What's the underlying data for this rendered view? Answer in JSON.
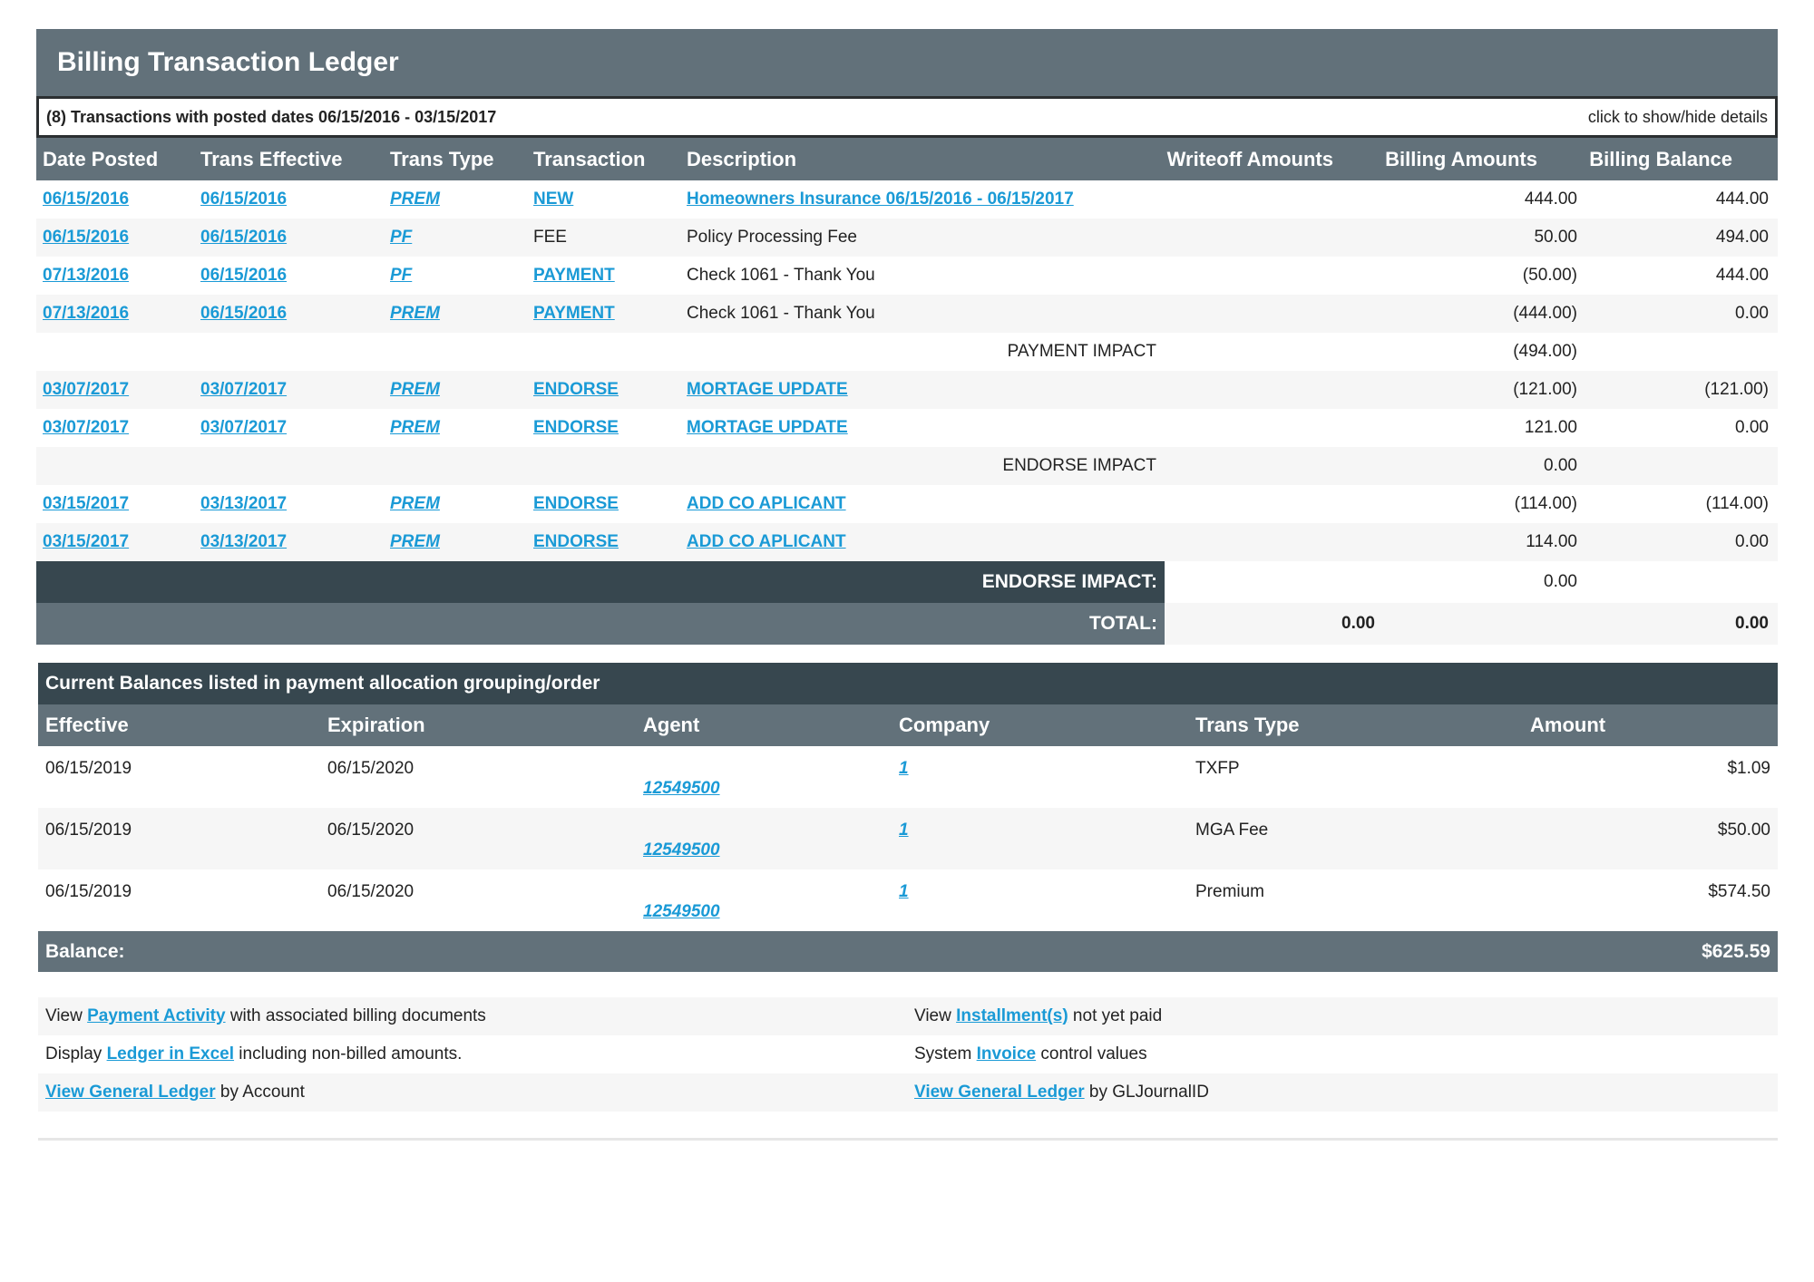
{
  "title": "Billing Transaction Ledger",
  "subtitle": "(8) Transactions with posted dates 06/15/2016 - 03/15/2017",
  "toggle_details": "click to show/hide details",
  "colors": {
    "header": "#62717a",
    "dark": "#37474f",
    "link": "#1a9ad6"
  },
  "columns": [
    "Date Posted",
    "Trans Effective",
    "Trans Type",
    "Transaction",
    "Description",
    "Writeoff Amounts",
    "Billing Amounts",
    "Billing Balance"
  ],
  "rows": [
    {
      "posted": "06/15/2016",
      "effective": "06/15/2016",
      "type": "PREM",
      "transaction": "NEW",
      "transaction_link": true,
      "description": "Homeowners Insurance 06/15/2016 - 06/15/2017",
      "description_link": true,
      "billing": "444.00",
      "balance": "444.00"
    },
    {
      "posted": "06/15/2016",
      "effective": "06/15/2016",
      "type": "PF",
      "transaction": "FEE",
      "transaction_link": false,
      "description": "Policy Processing Fee",
      "description_link": false,
      "billing": "50.00",
      "balance": "494.00"
    },
    {
      "posted": "07/13/2016",
      "effective": "06/15/2016",
      "type": "PF",
      "transaction": "PAYMENT",
      "transaction_link": true,
      "description": "Check 1061 - Thank You",
      "description_link": false,
      "billing": "(50.00)",
      "balance": "444.00"
    },
    {
      "posted": "07/13/2016",
      "effective": "06/15/2016",
      "type": "PREM",
      "transaction": "PAYMENT",
      "transaction_link": true,
      "description": "Check 1061 - Thank You",
      "description_link": false,
      "billing": "(444.00)",
      "balance": "0.00"
    },
    {
      "impact": "PAYMENT IMPACT",
      "billing": "(494.00)"
    },
    {
      "posted": "03/07/2017",
      "effective": "03/07/2017",
      "type": "PREM",
      "transaction": "ENDORSE",
      "transaction_link": true,
      "description": "MORTAGE UPDATE",
      "description_link": true,
      "billing": "(121.00)",
      "balance": "(121.00)"
    },
    {
      "posted": "03/07/2017",
      "effective": "03/07/2017",
      "type": "PREM",
      "transaction": "ENDORSE",
      "transaction_link": true,
      "description": "MORTAGE UPDATE",
      "description_link": true,
      "billing": "121.00",
      "balance": "0.00"
    },
    {
      "impact": "ENDORSE IMPACT",
      "billing": "0.00"
    },
    {
      "posted": "03/15/2017",
      "effective": "03/13/2017",
      "type": "PREM",
      "transaction": "ENDORSE",
      "transaction_link": true,
      "description": "ADD CO APLICANT",
      "description_link": true,
      "billing": "(114.00)",
      "balance": "(114.00)"
    },
    {
      "posted": "03/15/2017",
      "effective": "03/13/2017",
      "type": "PREM",
      "transaction": "ENDORSE",
      "transaction_link": true,
      "description": "ADD CO APLICANT",
      "description_link": true,
      "billing": "114.00",
      "balance": "0.00"
    }
  ],
  "summary": {
    "endorse_label": "ENDORSE IMPACT:",
    "endorse_value": "0.00",
    "total_label": "TOTAL:",
    "total_writeoff": "0.00",
    "total_balance": "0.00"
  },
  "balances": {
    "title": "Current Balances listed in payment allocation grouping/order",
    "columns": [
      "Effective",
      "Expiration",
      "Agent",
      "Company",
      "Trans Type",
      "Amount"
    ],
    "rows": [
      {
        "effective": "06/15/2019",
        "expiration": "06/15/2020",
        "agent": "12549500",
        "company": "1",
        "type": "TXFP",
        "amount": "$1.09"
      },
      {
        "effective": "06/15/2019",
        "expiration": "06/15/2020",
        "agent": "12549500",
        "company": "1",
        "type": "MGA Fee",
        "amount": "$50.00"
      },
      {
        "effective": "06/15/2019",
        "expiration": "06/15/2020",
        "agent": "12549500",
        "company": "1",
        "type": "Premium",
        "amount": "$574.50"
      }
    ],
    "balance_label": "Balance:",
    "balance_value": "$625.59"
  },
  "links": [
    [
      {
        "pre": "View ",
        "link": "Payment Activity",
        "post": " with associated billing documents"
      },
      {
        "pre": "View ",
        "link": "Installment(s)",
        "post": " not yet paid"
      }
    ],
    [
      {
        "pre": "Display ",
        "link": "Ledger in Excel",
        "post": " including non-billed amounts."
      },
      {
        "pre": "System ",
        "link": "Invoice",
        "post": " control values"
      }
    ],
    [
      {
        "pre": "",
        "link": "View General Ledger",
        "post": " by Account"
      },
      {
        "pre": "",
        "link": "View General Ledger",
        "post": " by GLJournalID"
      }
    ]
  ]
}
